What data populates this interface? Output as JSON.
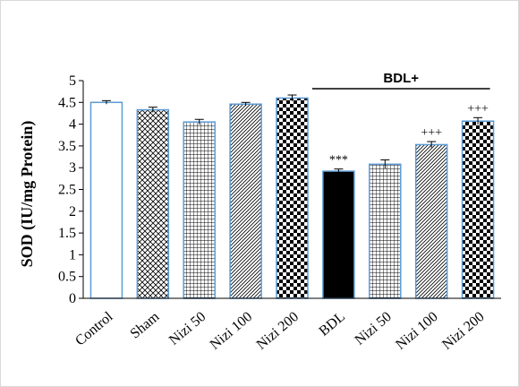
{
  "chart_data": {
    "type": "bar",
    "title": "",
    "xlabel": "",
    "ylabel": "SOD (IU/mg Protein)",
    "ylim": [
      0,
      5
    ],
    "yticks": [
      0,
      0.5,
      1,
      1.5,
      2,
      2.5,
      3,
      3.5,
      4,
      4.5,
      5
    ],
    "ytick_labels": [
      "0",
      "0.5",
      "1",
      "1.5",
      "2",
      "2.5",
      "3",
      "3.5",
      "4",
      "4.5",
      "5"
    ],
    "grid": false,
    "legend": "none",
    "categories": [
      "Control",
      "Sham",
      "Nizi 50",
      "Nizi 100",
      "Nizi 200",
      "BDL",
      "Nizi 50",
      "Nizi 100",
      "Nizi 200"
    ],
    "values": [
      4.5,
      4.33,
      4.05,
      4.46,
      4.6,
      2.92,
      3.08,
      3.53,
      4.07
    ],
    "errors": [
      0.04,
      0.06,
      0.06,
      0.04,
      0.07,
      0.05,
      0.1,
      0.07,
      0.08
    ],
    "patterns": [
      "white",
      "crosshatch-diagonal",
      "grid",
      "diagonal-lines",
      "checkerboard",
      "solid-black",
      "grid",
      "diagonal-lines",
      "checkerboard"
    ],
    "significance": [
      "",
      "",
      "",
      "",
      "",
      "***",
      "",
      "+++",
      "+++"
    ],
    "group_annotation": {
      "label": "BDL+"
    },
    "colors": {
      "bar_border": "#5b9bd5",
      "axis": "#000000",
      "fill_dark": "#000000",
      "fill_light": "#ffffff"
    }
  }
}
